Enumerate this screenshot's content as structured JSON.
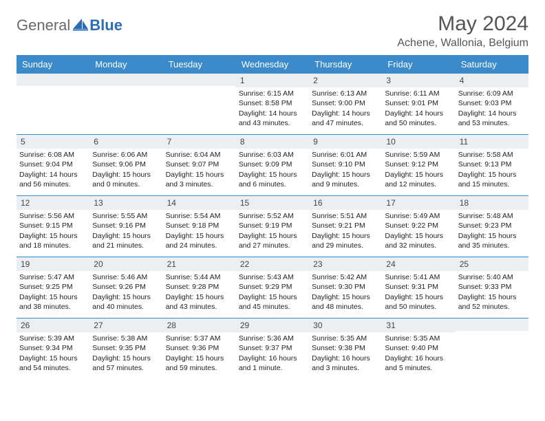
{
  "logo": {
    "text_general": "General",
    "text_blue": "Blue"
  },
  "title": {
    "month_year": "May 2024",
    "location": "Achene, Wallonia, Belgium"
  },
  "calendar": {
    "header_bg": "#3b8bca",
    "daynum_bg": "#eceff1",
    "day_names": [
      "Sunday",
      "Monday",
      "Tuesday",
      "Wednesday",
      "Thursday",
      "Friday",
      "Saturday"
    ],
    "weeks": [
      [
        {
          "n": "",
          "sr": "",
          "ss": "",
          "dl": ""
        },
        {
          "n": "",
          "sr": "",
          "ss": "",
          "dl": ""
        },
        {
          "n": "",
          "sr": "",
          "ss": "",
          "dl": ""
        },
        {
          "n": "1",
          "sr": "Sunrise: 6:15 AM",
          "ss": "Sunset: 8:58 PM",
          "dl": "Daylight: 14 hours and 43 minutes."
        },
        {
          "n": "2",
          "sr": "Sunrise: 6:13 AM",
          "ss": "Sunset: 9:00 PM",
          "dl": "Daylight: 14 hours and 47 minutes."
        },
        {
          "n": "3",
          "sr": "Sunrise: 6:11 AM",
          "ss": "Sunset: 9:01 PM",
          "dl": "Daylight: 14 hours and 50 minutes."
        },
        {
          "n": "4",
          "sr": "Sunrise: 6:09 AM",
          "ss": "Sunset: 9:03 PM",
          "dl": "Daylight: 14 hours and 53 minutes."
        }
      ],
      [
        {
          "n": "5",
          "sr": "Sunrise: 6:08 AM",
          "ss": "Sunset: 9:04 PM",
          "dl": "Daylight: 14 hours and 56 minutes."
        },
        {
          "n": "6",
          "sr": "Sunrise: 6:06 AM",
          "ss": "Sunset: 9:06 PM",
          "dl": "Daylight: 15 hours and 0 minutes."
        },
        {
          "n": "7",
          "sr": "Sunrise: 6:04 AM",
          "ss": "Sunset: 9:07 PM",
          "dl": "Daylight: 15 hours and 3 minutes."
        },
        {
          "n": "8",
          "sr": "Sunrise: 6:03 AM",
          "ss": "Sunset: 9:09 PM",
          "dl": "Daylight: 15 hours and 6 minutes."
        },
        {
          "n": "9",
          "sr": "Sunrise: 6:01 AM",
          "ss": "Sunset: 9:10 PM",
          "dl": "Daylight: 15 hours and 9 minutes."
        },
        {
          "n": "10",
          "sr": "Sunrise: 5:59 AM",
          "ss": "Sunset: 9:12 PM",
          "dl": "Daylight: 15 hours and 12 minutes."
        },
        {
          "n": "11",
          "sr": "Sunrise: 5:58 AM",
          "ss": "Sunset: 9:13 PM",
          "dl": "Daylight: 15 hours and 15 minutes."
        }
      ],
      [
        {
          "n": "12",
          "sr": "Sunrise: 5:56 AM",
          "ss": "Sunset: 9:15 PM",
          "dl": "Daylight: 15 hours and 18 minutes."
        },
        {
          "n": "13",
          "sr": "Sunrise: 5:55 AM",
          "ss": "Sunset: 9:16 PM",
          "dl": "Daylight: 15 hours and 21 minutes."
        },
        {
          "n": "14",
          "sr": "Sunrise: 5:54 AM",
          "ss": "Sunset: 9:18 PM",
          "dl": "Daylight: 15 hours and 24 minutes."
        },
        {
          "n": "15",
          "sr": "Sunrise: 5:52 AM",
          "ss": "Sunset: 9:19 PM",
          "dl": "Daylight: 15 hours and 27 minutes."
        },
        {
          "n": "16",
          "sr": "Sunrise: 5:51 AM",
          "ss": "Sunset: 9:21 PM",
          "dl": "Daylight: 15 hours and 29 minutes."
        },
        {
          "n": "17",
          "sr": "Sunrise: 5:49 AM",
          "ss": "Sunset: 9:22 PM",
          "dl": "Daylight: 15 hours and 32 minutes."
        },
        {
          "n": "18",
          "sr": "Sunrise: 5:48 AM",
          "ss": "Sunset: 9:23 PM",
          "dl": "Daylight: 15 hours and 35 minutes."
        }
      ],
      [
        {
          "n": "19",
          "sr": "Sunrise: 5:47 AM",
          "ss": "Sunset: 9:25 PM",
          "dl": "Daylight: 15 hours and 38 minutes."
        },
        {
          "n": "20",
          "sr": "Sunrise: 5:46 AM",
          "ss": "Sunset: 9:26 PM",
          "dl": "Daylight: 15 hours and 40 minutes."
        },
        {
          "n": "21",
          "sr": "Sunrise: 5:44 AM",
          "ss": "Sunset: 9:28 PM",
          "dl": "Daylight: 15 hours and 43 minutes."
        },
        {
          "n": "22",
          "sr": "Sunrise: 5:43 AM",
          "ss": "Sunset: 9:29 PM",
          "dl": "Daylight: 15 hours and 45 minutes."
        },
        {
          "n": "23",
          "sr": "Sunrise: 5:42 AM",
          "ss": "Sunset: 9:30 PM",
          "dl": "Daylight: 15 hours and 48 minutes."
        },
        {
          "n": "24",
          "sr": "Sunrise: 5:41 AM",
          "ss": "Sunset: 9:31 PM",
          "dl": "Daylight: 15 hours and 50 minutes."
        },
        {
          "n": "25",
          "sr": "Sunrise: 5:40 AM",
          "ss": "Sunset: 9:33 PM",
          "dl": "Daylight: 15 hours and 52 minutes."
        }
      ],
      [
        {
          "n": "26",
          "sr": "Sunrise: 5:39 AM",
          "ss": "Sunset: 9:34 PM",
          "dl": "Daylight: 15 hours and 54 minutes."
        },
        {
          "n": "27",
          "sr": "Sunrise: 5:38 AM",
          "ss": "Sunset: 9:35 PM",
          "dl": "Daylight: 15 hours and 57 minutes."
        },
        {
          "n": "28",
          "sr": "Sunrise: 5:37 AM",
          "ss": "Sunset: 9:36 PM",
          "dl": "Daylight: 15 hours and 59 minutes."
        },
        {
          "n": "29",
          "sr": "Sunrise: 5:36 AM",
          "ss": "Sunset: 9:37 PM",
          "dl": "Daylight: 16 hours and 1 minute."
        },
        {
          "n": "30",
          "sr": "Sunrise: 5:35 AM",
          "ss": "Sunset: 9:38 PM",
          "dl": "Daylight: 16 hours and 3 minutes."
        },
        {
          "n": "31",
          "sr": "Sunrise: 5:35 AM",
          "ss": "Sunset: 9:40 PM",
          "dl": "Daylight: 16 hours and 5 minutes."
        },
        {
          "n": "",
          "sr": "",
          "ss": "",
          "dl": ""
        }
      ]
    ]
  }
}
